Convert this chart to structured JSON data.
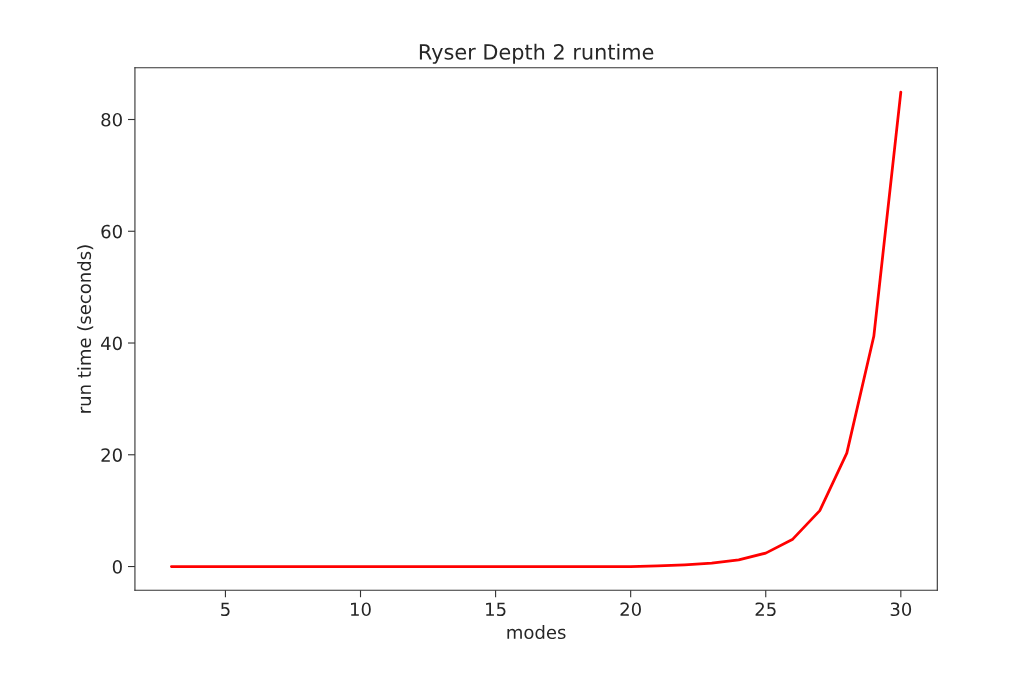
{
  "chart_data": {
    "type": "line",
    "title": "Ryser Depth 2 runtime",
    "xlabel": "modes",
    "ylabel": "run time (seconds)",
    "x": [
      3,
      4,
      5,
      6,
      7,
      8,
      9,
      10,
      11,
      12,
      13,
      14,
      15,
      16,
      17,
      18,
      19,
      20,
      21,
      22,
      23,
      24,
      25,
      26,
      27,
      28,
      29,
      30
    ],
    "series": [
      {
        "color": "#ff0000",
        "values": [
          0,
          0,
          0,
          0,
          0,
          0,
          0,
          0,
          0,
          0,
          0,
          0,
          0,
          0,
          0,
          0,
          0,
          0,
          0.1,
          0.3,
          0.6,
          1.2,
          2.4,
          4.9,
          10.0,
          20.3,
          41.2,
          84.9
        ]
      }
    ],
    "xlim": [
      1.65,
      31.35
    ],
    "ylim": [
      -4.25,
      89.25
    ],
    "xticks": [
      5,
      10,
      15,
      20,
      25,
      30
    ],
    "yticks": [
      0,
      20,
      40,
      60,
      80
    ],
    "grid": false,
    "legend": false
  }
}
